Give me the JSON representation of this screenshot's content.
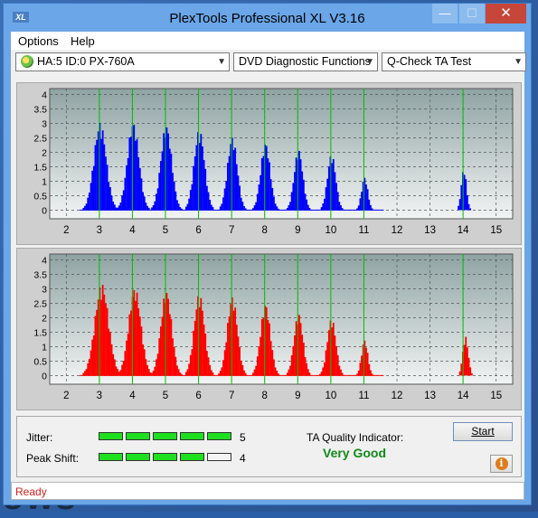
{
  "window": {
    "title": "PlexTools Professional XL V3.16",
    "icon_text": "XL"
  },
  "window_buttons": {
    "minimize": "—",
    "maximize": "☐",
    "close": "✕"
  },
  "menu": {
    "options": "Options",
    "help": "Help"
  },
  "toolbar": {
    "drive": "HA:5 ID:0  PX-760A",
    "function": "DVD Diagnostic Functions",
    "test": "Q-Check TA Test"
  },
  "colors": {
    "top_series": "#0000ff",
    "bottom_series": "#ff0000",
    "marker_line": "#00c000",
    "good": "#118a1a",
    "status": "#d0211b"
  },
  "chart_data": [
    {
      "type": "area",
      "name": "top-graph",
      "xlim": [
        1.5,
        15.5
      ],
      "ylim": [
        -0.3,
        4.2
      ],
      "x_ticks": [
        "2",
        "3",
        "4",
        "5",
        "6",
        "7",
        "8",
        "9",
        "10",
        "11",
        "12",
        "13",
        "14",
        "15"
      ],
      "y_ticks": [
        "4",
        "3.5",
        "3",
        "2.5",
        "2",
        "1.5",
        "1",
        "0.5",
        "0"
      ],
      "markers": [
        3,
        4,
        5,
        6,
        7,
        8,
        9,
        10,
        11,
        14
      ],
      "peaks": [
        {
          "x": 3.0,
          "h": 3.05,
          "w": 0.34
        },
        {
          "x": 4.0,
          "h": 3.05,
          "w": 0.32
        },
        {
          "x": 5.0,
          "h": 2.95,
          "w": 0.3
        },
        {
          "x": 6.0,
          "h": 2.8,
          "w": 0.29
        },
        {
          "x": 7.0,
          "h": 2.55,
          "w": 0.27
        },
        {
          "x": 8.0,
          "h": 2.35,
          "w": 0.26
        },
        {
          "x": 9.0,
          "h": 2.1,
          "w": 0.24
        },
        {
          "x": 10.0,
          "h": 1.95,
          "w": 0.23
        },
        {
          "x": 11.0,
          "h": 1.15,
          "w": 0.17
        },
        {
          "x": 14.0,
          "h": 1.45,
          "w": 0.14
        }
      ]
    },
    {
      "type": "area",
      "name": "bottom-graph",
      "xlim": [
        1.5,
        15.5
      ],
      "ylim": [
        -0.3,
        4.2
      ],
      "x_ticks": [
        "2",
        "3",
        "4",
        "5",
        "6",
        "7",
        "8",
        "9",
        "10",
        "11",
        "12",
        "13",
        "14",
        "15"
      ],
      "y_ticks": [
        "4",
        "3.5",
        "3",
        "2.5",
        "2",
        "1.5",
        "1",
        "0.5",
        "0"
      ],
      "markers": [
        3,
        4,
        5,
        6,
        7,
        8,
        9,
        10,
        11,
        14
      ],
      "peaks": [
        {
          "x": 3.05,
          "h": 3.2,
          "w": 0.38
        },
        {
          "x": 4.05,
          "h": 3.05,
          "w": 0.34
        },
        {
          "x": 5.0,
          "h": 2.95,
          "w": 0.3
        },
        {
          "x": 6.0,
          "h": 2.85,
          "w": 0.29
        },
        {
          "x": 7.0,
          "h": 2.75,
          "w": 0.28
        },
        {
          "x": 8.0,
          "h": 2.5,
          "w": 0.27
        },
        {
          "x": 9.0,
          "h": 2.15,
          "w": 0.25
        },
        {
          "x": 10.0,
          "h": 2.0,
          "w": 0.24
        },
        {
          "x": 11.0,
          "h": 1.25,
          "w": 0.17
        },
        {
          "x": 14.05,
          "h": 1.35,
          "w": 0.15
        }
      ]
    }
  ],
  "results": {
    "jitter_label": "Jitter:",
    "jitter_value": "5",
    "jitter_level": 5,
    "peak_label": "Peak Shift:",
    "peak_value": "4",
    "peak_level": 4,
    "ta_label": "TA Quality Indicator:",
    "ta_value": "Very Good"
  },
  "buttons": {
    "start": "Start",
    "info": "i"
  },
  "status": "Ready",
  "desktop_text": "ows"
}
